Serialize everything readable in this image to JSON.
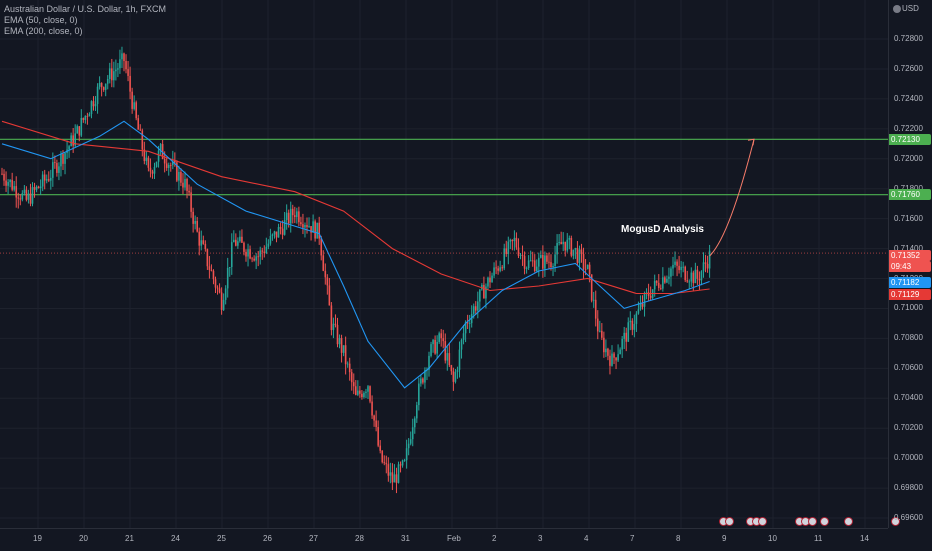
{
  "legend": {
    "symbol": "Australian Dollar / U.S. Dollar, 1h, FXCM",
    "ema50": "EMA (50, close, 0)",
    "ema200": "EMA (200, close, 0)"
  },
  "currency": "USD",
  "annotation": "MogusD Analysis",
  "price_ticks": [
    "0.72800",
    "0.72600",
    "0.72400",
    "0.72200",
    "0.72000",
    "0.71800",
    "0.71600",
    "0.71400",
    "0.71200",
    "0.71000",
    "0.70800",
    "0.70600",
    "0.70400",
    "0.70200",
    "0.70000",
    "0.69800",
    "0.69600"
  ],
  "time_ticks": [
    "19",
    "20",
    "21",
    "24",
    "25",
    "26",
    "27",
    "28",
    "31",
    "Feb",
    "2",
    "3",
    "4",
    "7",
    "8",
    "9",
    "10",
    "11",
    "14"
  ],
  "price_labels": {
    "resistance_upper": "0.72130",
    "resistance_lower": "0.71760",
    "last_price": "0.71352",
    "countdown": "09:43",
    "ema50_value": "0.71182",
    "ema200_value": "0.71129"
  },
  "colors": {
    "bull": "#26a69a",
    "bear": "#ef5350",
    "ema50": "#2196f3",
    "ema200": "#e53935",
    "level": "#4caf50",
    "arrow": "#f77c6a"
  },
  "chart_data": {
    "type": "candlestick",
    "title": "Australian Dollar / U.S. Dollar, 1h, FXCM",
    "ylim": [
      0.6955,
      0.7295
    ],
    "x": [
      "19",
      "20",
      "21",
      "24",
      "25",
      "26",
      "27",
      "28",
      "31",
      "Feb",
      "2",
      "3",
      "4",
      "7",
      "8",
      "9",
      "10",
      "11",
      "14"
    ],
    "price_path": [
      [
        0,
        0.719
      ],
      [
        2,
        0.7172
      ],
      [
        4,
        0.719
      ],
      [
        6,
        0.7215
      ],
      [
        8,
        0.7248
      ],
      [
        10,
        0.7266
      ],
      [
        11,
        0.7225
      ],
      [
        12,
        0.719
      ],
      [
        13,
        0.7205
      ],
      [
        15,
        0.7183
      ],
      [
        16,
        0.715
      ],
      [
        18,
        0.7105
      ],
      [
        19,
        0.7145
      ],
      [
        21,
        0.7135
      ],
      [
        23,
        0.7155
      ],
      [
        24,
        0.7165
      ],
      [
        26,
        0.715
      ],
      [
        27,
        0.709
      ],
      [
        28,
        0.707
      ],
      [
        29,
        0.704
      ],
      [
        30,
        0.705
      ],
      [
        31,
        0.7
      ],
      [
        32,
        0.6985
      ],
      [
        33,
        0.6995
      ],
      [
        34,
        0.704
      ],
      [
        35,
        0.707
      ],
      [
        36,
        0.708
      ],
      [
        37,
        0.705
      ],
      [
        38,
        0.709
      ],
      [
        40,
        0.712
      ],
      [
        42,
        0.7145
      ],
      [
        43,
        0.713
      ],
      [
        45,
        0.7132
      ],
      [
        46,
        0.7145
      ],
      [
        47,
        0.7138
      ],
      [
        48,
        0.7125
      ],
      [
        49,
        0.708
      ],
      [
        50,
        0.7065
      ],
      [
        51,
        0.708
      ],
      [
        52,
        0.7095
      ],
      [
        53,
        0.711
      ],
      [
        55,
        0.7128
      ],
      [
        57,
        0.712
      ],
      [
        58,
        0.7135
      ]
    ],
    "forecast_target": 0.7213,
    "horizontal_levels": [
      0.7213,
      0.7176
    ],
    "series": [
      {
        "name": "EMA (50, close, 0)",
        "values": [
          [
            0,
            0.721
          ],
          [
            4,
            0.72
          ],
          [
            8,
            0.7215
          ],
          [
            10,
            0.7225
          ],
          [
            12,
            0.7213
          ],
          [
            16,
            0.7183
          ],
          [
            20,
            0.7165
          ],
          [
            24,
            0.7155
          ],
          [
            26,
            0.715
          ],
          [
            28,
            0.7115
          ],
          [
            30,
            0.7078
          ],
          [
            33,
            0.7047
          ],
          [
            35,
            0.706
          ],
          [
            38,
            0.709
          ],
          [
            41,
            0.7112
          ],
          [
            44,
            0.7125
          ],
          [
            47,
            0.713
          ],
          [
            49,
            0.7115
          ],
          [
            51,
            0.71
          ],
          [
            53,
            0.7105
          ],
          [
            56,
            0.7112
          ],
          [
            58,
            0.7118
          ]
        ]
      },
      {
        "name": "EMA (200, close, 0)",
        "values": [
          [
            0,
            0.7225
          ],
          [
            6,
            0.721
          ],
          [
            12,
            0.7205
          ],
          [
            18,
            0.7188
          ],
          [
            24,
            0.7178
          ],
          [
            28,
            0.7165
          ],
          [
            32,
            0.714
          ],
          [
            36,
            0.7123
          ],
          [
            40,
            0.7112
          ],
          [
            44,
            0.7115
          ],
          [
            48,
            0.712
          ],
          [
            52,
            0.711
          ],
          [
            55,
            0.711
          ],
          [
            58,
            0.7113
          ]
        ]
      }
    ]
  }
}
